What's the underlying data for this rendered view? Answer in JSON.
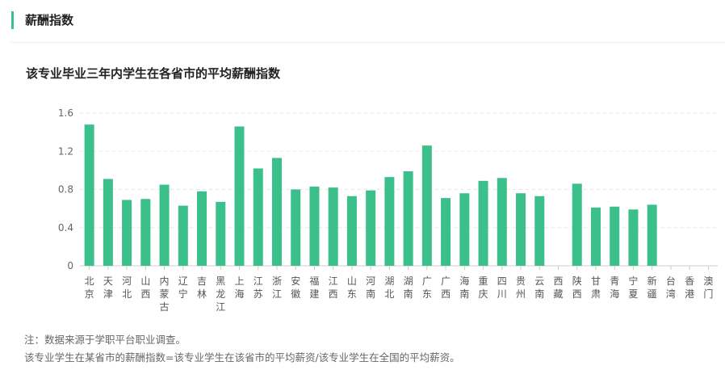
{
  "section_title": "薪酬指数",
  "chart_data": {
    "type": "bar",
    "title": "该专业毕业三年内学生在各省市的平均薪酬指数",
    "categories": [
      "北京",
      "天津",
      "河北",
      "山西",
      "内蒙古",
      "辽宁",
      "吉林",
      "黑龙江",
      "上海",
      "江苏",
      "浙江",
      "安徽",
      "福建",
      "江西",
      "山东",
      "河南",
      "湖北",
      "湖南",
      "广东",
      "广西",
      "海南",
      "重庆",
      "四川",
      "贵州",
      "云南",
      "西藏",
      "陕西",
      "甘肃",
      "青海",
      "宁夏",
      "新疆",
      "台湾",
      "香港",
      "澳门"
    ],
    "values": [
      1.48,
      0.91,
      0.69,
      0.7,
      0.85,
      0.63,
      0.78,
      0.67,
      1.46,
      1.02,
      1.13,
      0.8,
      0.83,
      0.82,
      0.73,
      0.79,
      0.93,
      0.99,
      1.26,
      0.71,
      0.76,
      0.89,
      0.92,
      0.76,
      0.73,
      null,
      0.86,
      0.61,
      0.62,
      0.59,
      0.64,
      null,
      null,
      null
    ],
    "yticks": [
      "0",
      "0.4",
      "0.8",
      "1.2",
      "1.6"
    ],
    "ylim": [
      0,
      1.6
    ],
    "grid": true,
    "color": "#3bbf8b"
  },
  "notes": [
    "注：数据来源于学职平台职业调查。",
    "该专业学生在某省市的薪酬指数=该专业学生在该省市的平均薪资/该专业学生在全国的平均薪资。"
  ]
}
